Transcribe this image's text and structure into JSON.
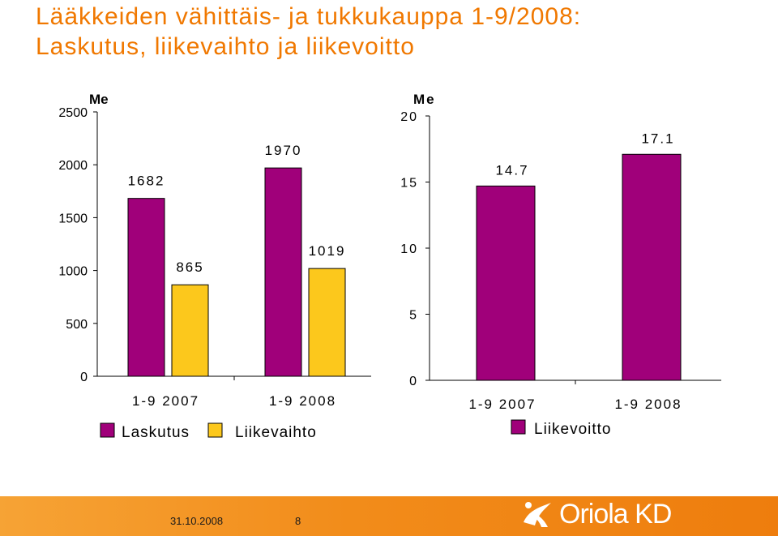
{
  "title": {
    "line1": "Lääkkeiden vähittäis- ja tukkukauppa 1-9/2008:",
    "line2": "Laskutus, liikevaihto ja liikevoitto"
  },
  "colors": {
    "title": "#f07800",
    "laskutus": "#a0007a",
    "liikevaihto": "#fcc81c",
    "liikevoitto": "#a0007a",
    "footer": "#f28c1a"
  },
  "chart_data": [
    {
      "type": "bar",
      "ylabel": "Me",
      "ylim": [
        0,
        2500
      ],
      "yticks": [
        "0",
        "500",
        "1000",
        "1500",
        "2000",
        "2500"
      ],
      "categories": [
        "1-9 2007",
        "1-9 2008"
      ],
      "series": [
        {
          "name": "Laskutus",
          "values": [
            1682,
            1970
          ]
        },
        {
          "name": "Liikevaihto",
          "values": [
            865,
            1019
          ]
        }
      ],
      "data_labels": [
        [
          "1682",
          "1970"
        ],
        [
          "865",
          "1019"
        ]
      ],
      "legend": "bottom",
      "grid": false
    },
    {
      "type": "bar",
      "ylabel": "Me",
      "ylim": [
        0,
        20
      ],
      "yticks": [
        "0",
        "5",
        "10",
        "15",
        "20"
      ],
      "categories": [
        "1-9 2007",
        "1-9 2008"
      ],
      "series": [
        {
          "name": "Liikevoitto",
          "values": [
            14.7,
            17.1
          ]
        }
      ],
      "data_labels": [
        [
          "14.7",
          "17.1"
        ]
      ],
      "legend": "bottom",
      "grid": false
    }
  ],
  "footer": {
    "date": "31.10.2008",
    "page": "8",
    "logo_text": "Oriola KD"
  }
}
